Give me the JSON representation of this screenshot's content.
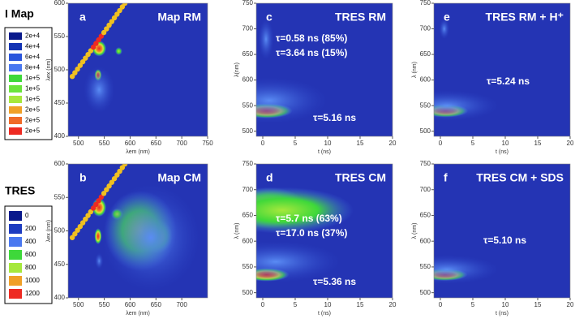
{
  "chart_data": [
    {
      "type": "contour",
      "panel": "a",
      "title": "Map RM",
      "annotations": [],
      "xlabel": "λem (nm)",
      "ylabel": "λex (nm)",
      "xlim": [
        480,
        750
      ],
      "ylim": [
        400,
        600
      ],
      "xticks": [
        500,
        550,
        600,
        650,
        700,
        750
      ],
      "yticks": [
        400,
        450,
        500,
        550,
        600
      ]
    },
    {
      "type": "contour",
      "panel": "c",
      "title": "TRES RM",
      "annotations": [
        "τ=0.58 ns (85%)",
        "τ=3.64 ns (15%)",
        "τ=5.16 ns"
      ],
      "xlabel": "t (ns)",
      "ylabel": "λ(nm)",
      "xlim": [
        -1,
        20
      ],
      "ylim": [
        490,
        750
      ],
      "xticks": [
        0,
        5,
        10,
        15,
        20
      ],
      "yticks": [
        500,
        550,
        600,
        650,
        700,
        750
      ]
    },
    {
      "type": "contour",
      "panel": "e",
      "title": "TRES RM + H⁺",
      "annotations": [
        "τ=5.24 ns"
      ],
      "xlabel": "t (ns)",
      "ylabel": "λ (nm)",
      "xlim": [
        -1,
        20
      ],
      "ylim": [
        490,
        750
      ],
      "xticks": [
        0,
        5,
        10,
        15,
        20
      ],
      "yticks": [
        500,
        550,
        600,
        650,
        700,
        750
      ]
    },
    {
      "type": "contour",
      "panel": "b",
      "title": "Map CM",
      "annotations": [],
      "xlabel": "λem (nm)",
      "ylabel": "λex (nm)",
      "xlim": [
        480,
        750
      ],
      "ylim": [
        400,
        600
      ],
      "xticks": [
        500,
        550,
        600,
        650,
        700
      ],
      "yticks": [
        400,
        450,
        500,
        550,
        600
      ]
    },
    {
      "type": "contour",
      "panel": "d",
      "title": "TRES CM",
      "annotations": [
        "τ=5.7 ns (63%)",
        "τ=17.0 ns (37%)",
        "τ=5.36 ns"
      ],
      "xlabel": "t (ns)",
      "ylabel": "λ (nm)",
      "xlim": [
        -1,
        20
      ],
      "ylim": [
        490,
        750
      ],
      "xticks": [
        0,
        5,
        10,
        15,
        20
      ],
      "yticks": [
        500,
        550,
        600,
        650,
        700,
        750
      ]
    },
    {
      "type": "contour",
      "panel": "f",
      "title": "TRES CM + SDS",
      "annotations": [
        "τ=5.10 ns"
      ],
      "xlabel": "t (ns)",
      "ylabel": "λ (nm)",
      "xlim": [
        -1,
        20
      ],
      "ylim": [
        490,
        750
      ],
      "xticks": [
        0,
        5,
        10,
        15,
        20
      ],
      "yticks": [
        500,
        550,
        600,
        650,
        700,
        750
      ]
    }
  ],
  "legends": [
    {
      "title": "I Map",
      "entries": [
        {
          "label": "2e+4",
          "color": "#0a1a8c"
        },
        {
          "label": "4e+4",
          "color": "#1434b4"
        },
        {
          "label": "6e+4",
          "color": "#2a55dc"
        },
        {
          "label": "8e+4",
          "color": "#4a78f0"
        },
        {
          "label": "1e+5",
          "color": "#3ed83a"
        },
        {
          "label": "1e+5",
          "color": "#6ae43c"
        },
        {
          "label": "1e+5",
          "color": "#a6e83c"
        },
        {
          "label": "2e+5",
          "color": "#f0a028"
        },
        {
          "label": "2e+5",
          "color": "#f06a28"
        },
        {
          "label": "2e+5",
          "color": "#ee2a22"
        }
      ]
    },
    {
      "title": "TRES",
      "entries": [
        {
          "label": "0",
          "color": "#0a1a8c"
        },
        {
          "label": "200",
          "color": "#1e3cc0"
        },
        {
          "label": "400",
          "color": "#4a78f0"
        },
        {
          "label": "600",
          "color": "#3ed83a"
        },
        {
          "label": "800",
          "color": "#a6e83c"
        },
        {
          "label": "1000",
          "color": "#f0a028"
        },
        {
          "label": "1200",
          "color": "#ee2a22"
        }
      ]
    }
  ]
}
